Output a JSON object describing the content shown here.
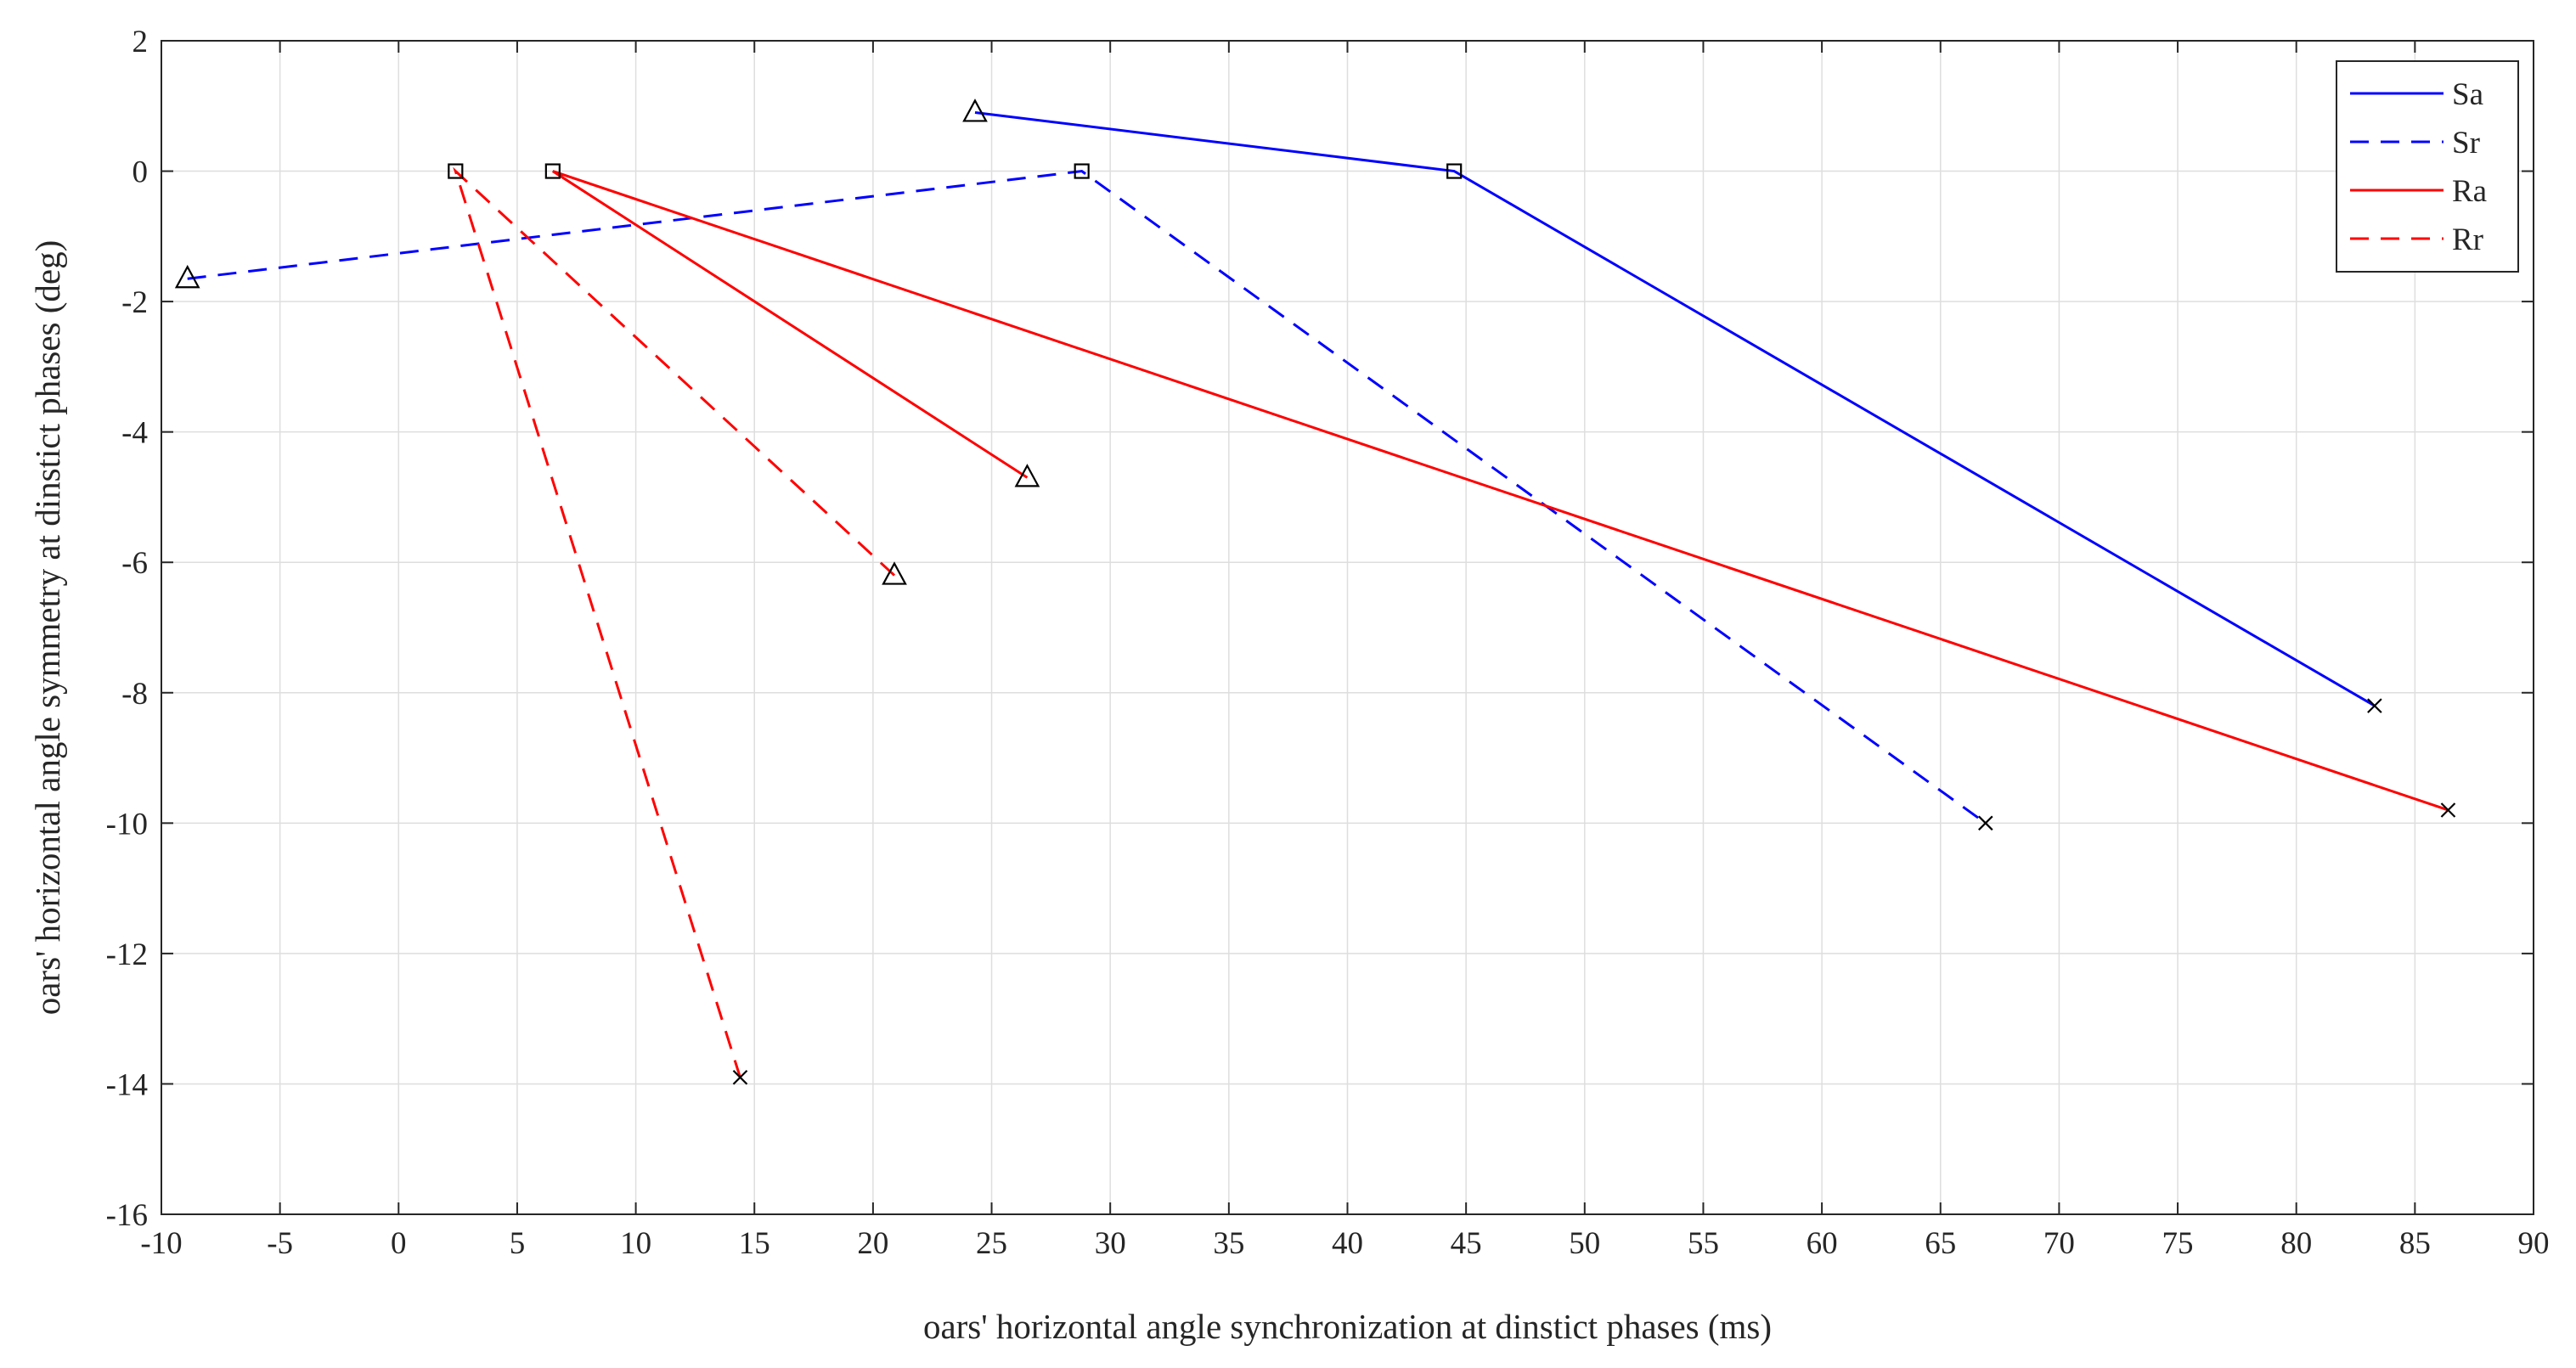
{
  "chart_data": {
    "type": "line",
    "title": "",
    "xlabel": "oars' horizontal angle synchronization at dinstict phases (ms)",
    "ylabel": "oars' horizontal angle symmetry at dinstict phases (deg)",
    "xlim": [
      -10,
      90
    ],
    "ylim": [
      -16,
      2
    ],
    "xticks": [
      -10,
      -5,
      0,
      5,
      10,
      15,
      20,
      25,
      30,
      35,
      40,
      45,
      50,
      55,
      60,
      65,
      70,
      75,
      80,
      85,
      90
    ],
    "yticks": [
      2,
      0,
      -2,
      -4,
      -6,
      -8,
      -10,
      -12,
      -14,
      -16
    ],
    "grid": true,
    "legend_position": "top-right",
    "series": [
      {
        "name": "Sa",
        "color": "#0000ff",
        "dash": "solid",
        "points": [
          {
            "x": 24.3,
            "y": 0.9,
            "marker": "triangle"
          },
          {
            "x": 44.5,
            "y": 0.0,
            "marker": "square"
          },
          {
            "x": 83.3,
            "y": -8.2,
            "marker": "x"
          }
        ]
      },
      {
        "name": "Sr",
        "color": "#0000ff",
        "dash": "dashed",
        "points": [
          {
            "x": -8.9,
            "y": -1.65,
            "marker": "triangle"
          },
          {
            "x": 28.8,
            "y": 0.0,
            "marker": "square"
          },
          {
            "x": 66.9,
            "y": -10.0,
            "marker": "x"
          }
        ]
      },
      {
        "name": "Ra",
        "color": "#ff0000",
        "dash": "solid",
        "points": [
          {
            "x": 26.5,
            "y": -4.7,
            "marker": "triangle"
          },
          {
            "x": 6.5,
            "y": 0.0,
            "marker": "square"
          },
          {
            "x": 86.4,
            "y": -9.8,
            "marker": "x"
          }
        ]
      },
      {
        "name": "Rr",
        "color": "#ff0000",
        "dash": "dashed",
        "points": [
          {
            "x": 20.9,
            "y": -6.2,
            "marker": "triangle"
          },
          {
            "x": 2.4,
            "y": 0.0,
            "marker": "square"
          },
          {
            "x": 14.4,
            "y": -13.9,
            "marker": "x"
          }
        ]
      }
    ]
  }
}
